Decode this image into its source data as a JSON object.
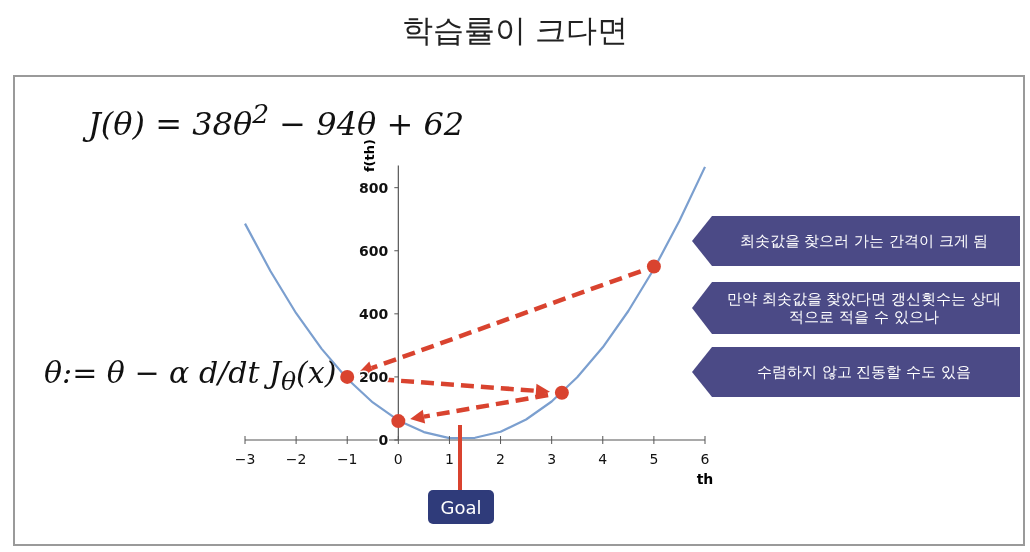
{
  "chart_data": {
    "type": "line",
    "title": "학습률이 크다면",
    "xlabel": "th",
    "ylabel": "f(th)",
    "series": [
      {
        "type": "line",
        "color": "#7b9fcf",
        "x": [
          -3,
          -2.5,
          -2,
          -1.5,
          -1,
          -0.5,
          0,
          0.5,
          1,
          1.5,
          2,
          2.5,
          3,
          3.5,
          4,
          4.5,
          5,
          5.5,
          6
        ],
        "values": [
          686,
          535,
          402,
          289,
          194,
          119,
          62,
          25,
          6,
          7,
          26,
          65,
          122,
          199,
          294,
          409,
          542,
          695,
          866
        ]
      },
      {
        "type": "scatter",
        "color": "#d9432f",
        "marker": "circle",
        "x": [
          5,
          -1,
          3.2,
          0
        ],
        "values": [
          550,
          200,
          150,
          60
        ]
      }
    ],
    "xlim": [
      -3,
      6
    ],
    "ylim": [
      0,
      870
    ],
    "xticks": [
      -3,
      -2,
      -1,
      0,
      1,
      2,
      3,
      4,
      5,
      6
    ],
    "yticks": [
      0,
      200,
      400,
      600,
      800
    ],
    "grid": false,
    "annotations": [
      "J(θ) = 38θ$^{2}$ − 94θ + 62",
      "θ:= θ − α d/dt J$_{θ}$(x)",
      "최솟값을 찾으러 가는 간격이 크게 됨",
      "만약 최솟값을 찾았다면 갱신횟수는 상대적으로 적을 수 있으나",
      "수렴하지 않고 진동할 수도 있음",
      "Goal"
    ]
  }
}
